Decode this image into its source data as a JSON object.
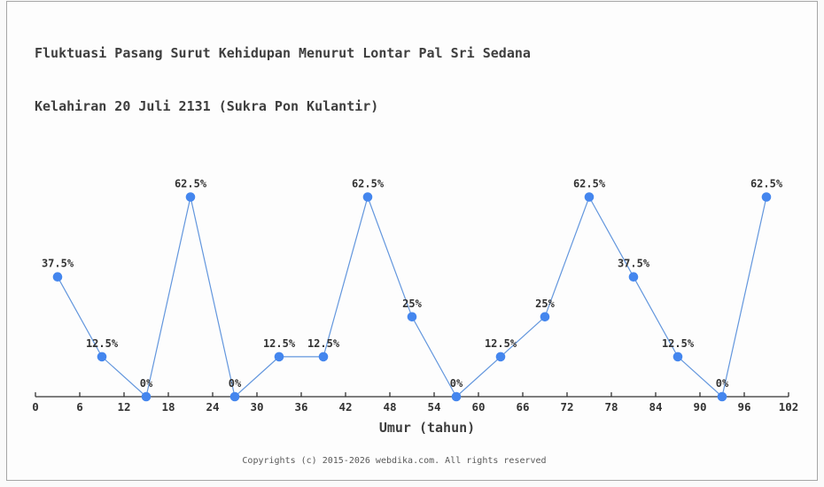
{
  "page": {
    "background": "#fdfdfd",
    "frame_border_color": "#a6a6a6"
  },
  "title": {
    "line1": "Fluktuasi Pasang Surut Kehidupan Menurut Lontar Pal Sri Sedana",
    "line2": "Kelahiran 20 Juli 2131 (Sukra Pon Kulantir)"
  },
  "chart_data": {
    "type": "line",
    "title": "Fluktuasi Pasang Surut Kehidupan Menurut Lontar Pal Sri Sedana Kelahiran 20 Juli 2131 (Sukra Pon Kulantir)",
    "x": [
      3,
      9,
      15,
      21,
      27,
      33,
      39,
      45,
      51,
      57,
      63,
      69,
      75,
      81,
      87,
      93,
      99
    ],
    "values": [
      37.5,
      12.5,
      0,
      62.5,
      0,
      12.5,
      12.5,
      62.5,
      25,
      0,
      12.5,
      25,
      62.5,
      37.5,
      12.5,
      0,
      62.5
    ],
    "point_labels": [
      "37.5%",
      "12.5%",
      "0%",
      "62.5%",
      "0%",
      "12.5%",
      "12.5%",
      "62.5%",
      "25%",
      "0%",
      "12.5%",
      "25%",
      "62.5%",
      "37.5%",
      "12.5%",
      "0%",
      "62.5%"
    ],
    "x_ticks": [
      0,
      6,
      12,
      18,
      24,
      30,
      36,
      42,
      48,
      54,
      60,
      66,
      72,
      78,
      84,
      90,
      96,
      102
    ],
    "xlim": [
      0,
      102
    ],
    "ylim": [
      0,
      70
    ],
    "xlabel": "Umur (tahun)",
    "ylabel": "",
    "grid": false,
    "legend": "none",
    "colors": {
      "line": "#6296dd",
      "marker": "#4486ee",
      "axis": "#333333",
      "tick_label": "#333333",
      "value_label": "#333333",
      "xlabel": "#3e3e3e"
    }
  },
  "footer": {
    "copyright": "Copyrights (c) 2015-2026 webdika.com. All rights reserved"
  }
}
